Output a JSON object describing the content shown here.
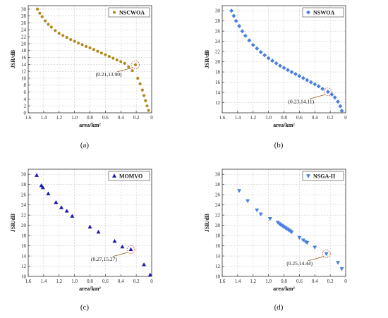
{
  "chart_data": [
    {
      "type": "scatter",
      "panel_label": "(a)",
      "xlabel": "area/km²",
      "ylabel": "JSR/dB",
      "xlim": [
        1.6,
        0
      ],
      "ylim": [
        0,
        31
      ],
      "xticks": [
        "1.6",
        "1.4",
        "1.2",
        "1.0",
        "0.8",
        "0.6",
        "0.4",
        "0.2",
        "0"
      ],
      "yticks": [
        "0",
        "2",
        "4",
        "6",
        "8",
        "10",
        "12",
        "14",
        "16",
        "18",
        "20",
        "22",
        "24",
        "26",
        "28",
        "30"
      ],
      "grid": true,
      "legend_position": "top-right",
      "series": [
        {
          "name": "NSCWOA",
          "marker": "dot",
          "color": "#b08a1e",
          "points": [
            [
              1.48,
              30.0
            ],
            [
              1.45,
              28.8
            ],
            [
              1.42,
              27.8
            ],
            [
              1.38,
              26.6
            ],
            [
              1.34,
              25.6
            ],
            [
              1.3,
              24.8
            ],
            [
              1.25,
              23.8
            ],
            [
              1.2,
              23.0
            ],
            [
              1.15,
              22.4
            ],
            [
              1.1,
              21.8
            ],
            [
              1.05,
              21.2
            ],
            [
              1.0,
              20.7
            ],
            [
              0.95,
              20.2
            ],
            [
              0.9,
              19.7
            ],
            [
              0.85,
              19.2
            ],
            [
              0.8,
              18.8
            ],
            [
              0.75,
              18.3
            ],
            [
              0.7,
              17.8
            ],
            [
              0.65,
              17.3
            ],
            [
              0.6,
              16.8
            ],
            [
              0.55,
              16.3
            ],
            [
              0.5,
              15.8
            ],
            [
              0.45,
              15.3
            ],
            [
              0.4,
              14.8
            ],
            [
              0.35,
              14.3
            ],
            [
              0.3,
              13.3
            ],
            [
              0.25,
              12.2
            ],
            [
              0.21,
              13.9
            ],
            [
              0.18,
              10.0
            ],
            [
              0.15,
              8.4
            ],
            [
              0.12,
              6.6
            ],
            [
              0.1,
              5.0
            ],
            [
              0.08,
              3.5
            ],
            [
              0.06,
              2.0
            ],
            [
              0.04,
              0.7
            ]
          ]
        }
      ],
      "annotations": [
        {
          "text": "(0.21,13.90)",
          "x": 0.21,
          "y": 13.9
        }
      ]
    },
    {
      "type": "scatter",
      "panel_label": "(b)",
      "xlabel": "area/km²",
      "ylabel": "JSR/dB",
      "xlim": [
        1.6,
        0
      ],
      "ylim": [
        10,
        31
      ],
      "xticks": [
        "1.6",
        "1.4",
        "1.2",
        "1.0",
        "0.8",
        "0.6",
        "0.4",
        "0.2",
        "0"
      ],
      "yticks": [
        "12",
        "14",
        "16",
        "18",
        "20",
        "22",
        "24",
        "26",
        "28",
        "30"
      ],
      "grid": true,
      "legend_position": "top-right",
      "series": [
        {
          "name": "NSWOA",
          "marker": "diamond",
          "color": "#4a7fe0",
          "points": [
            [
              1.48,
              30.0
            ],
            [
              1.45,
              29.0
            ],
            [
              1.42,
              28.0
            ],
            [
              1.38,
              27.0
            ],
            [
              1.34,
              26.0
            ],
            [
              1.3,
              25.1
            ],
            [
              1.25,
              24.2
            ],
            [
              1.2,
              23.3
            ],
            [
              1.15,
              22.6
            ],
            [
              1.1,
              21.9
            ],
            [
              1.05,
              21.3
            ],
            [
              1.0,
              20.7
            ],
            [
              0.95,
              20.2
            ],
            [
              0.9,
              19.7
            ],
            [
              0.85,
              19.2
            ],
            [
              0.8,
              18.8
            ],
            [
              0.75,
              18.4
            ],
            [
              0.7,
              18.0
            ],
            [
              0.65,
              17.6
            ],
            [
              0.6,
              17.2
            ],
            [
              0.55,
              16.8
            ],
            [
              0.5,
              16.4
            ],
            [
              0.45,
              16.0
            ],
            [
              0.4,
              15.6
            ],
            [
              0.35,
              15.2
            ],
            [
              0.3,
              14.7
            ],
            [
              0.23,
              14.11
            ],
            [
              0.18,
              13.6
            ],
            [
              0.14,
              13.0
            ],
            [
              0.1,
              12.2
            ],
            [
              0.07,
              11.3
            ],
            [
              0.05,
              10.4
            ]
          ]
        }
      ],
      "annotations": [
        {
          "text": "(0.23,14.11)",
          "x": 0.23,
          "y": 14.11
        }
      ]
    },
    {
      "type": "scatter",
      "panel_label": "(c)",
      "xlabel": "area/km²",
      "ylabel": "JSR/dB",
      "xlim": [
        1.6,
        0
      ],
      "ylim": [
        10,
        31
      ],
      "xticks": [
        "1.6",
        "1.4",
        "1.2",
        "1.0",
        "0.8",
        "0.6",
        "0.4",
        "0.2",
        "0"
      ],
      "yticks": [
        "10",
        "12",
        "14",
        "16",
        "18",
        "20",
        "22",
        "24",
        "26",
        "28",
        "30"
      ],
      "grid": true,
      "legend_position": "top-right",
      "series": [
        {
          "name": "MOMVO",
          "marker": "triangle-up",
          "color": "#1a1ab0",
          "points": [
            [
              1.49,
              29.8
            ],
            [
              1.43,
              27.8
            ],
            [
              1.41,
              27.4
            ],
            [
              1.34,
              26.2
            ],
            [
              1.24,
              24.5
            ],
            [
              1.17,
              23.5
            ],
            [
              1.1,
              22.8
            ],
            [
              1.03,
              21.8
            ],
            [
              0.8,
              19.7
            ],
            [
              0.69,
              18.7
            ],
            [
              0.48,
              16.9
            ],
            [
              0.38,
              15.8
            ],
            [
              0.27,
              15.27
            ],
            [
              0.1,
              12.3
            ],
            [
              0.02,
              10.3
            ]
          ]
        }
      ],
      "annotations": [
        {
          "text": "(0.27,15.27)",
          "x": 0.27,
          "y": 15.27
        }
      ]
    },
    {
      "type": "scatter",
      "panel_label": "(d)",
      "xlabel": "area/km²",
      "ylabel": "JSR/dB",
      "xlim": [
        1.6,
        0
      ],
      "ylim": [
        10,
        31
      ],
      "xticks": [
        "1.6",
        "1.4",
        "1.2",
        "1.0",
        "0.8",
        "0.6",
        "0.4",
        "0.2",
        "0"
      ],
      "yticks": [
        "10",
        "12",
        "14",
        "16",
        "18",
        "20",
        "22",
        "24",
        "26",
        "28",
        "30"
      ],
      "grid": true,
      "legend_position": "top-right",
      "series": [
        {
          "name": "NSGA-II",
          "marker": "triangle-down",
          "color": "#4a7fe0",
          "points": [
            [
              1.38,
              26.8
            ],
            [
              1.27,
              24.8
            ],
            [
              1.15,
              23.0
            ],
            [
              1.1,
              22.2
            ],
            [
              0.98,
              21.3
            ],
            [
              0.88,
              20.6
            ],
            [
              0.86,
              20.3
            ],
            [
              0.84,
              20.1
            ],
            [
              0.82,
              19.9
            ],
            [
              0.8,
              19.7
            ],
            [
              0.78,
              19.5
            ],
            [
              0.76,
              19.3
            ],
            [
              0.74,
              19.1
            ],
            [
              0.72,
              18.9
            ],
            [
              0.7,
              18.7
            ],
            [
              0.6,
              17.6
            ],
            [
              0.55,
              17.1
            ],
            [
              0.52,
              16.8
            ],
            [
              0.5,
              16.6
            ],
            [
              0.4,
              15.7
            ],
            [
              0.25,
              14.44
            ],
            [
              0.1,
              12.7
            ],
            [
              0.05,
              11.5
            ]
          ]
        }
      ],
      "annotations": [
        {
          "text": "(0.25,14.44)",
          "x": 0.25,
          "y": 14.44
        }
      ]
    }
  ]
}
